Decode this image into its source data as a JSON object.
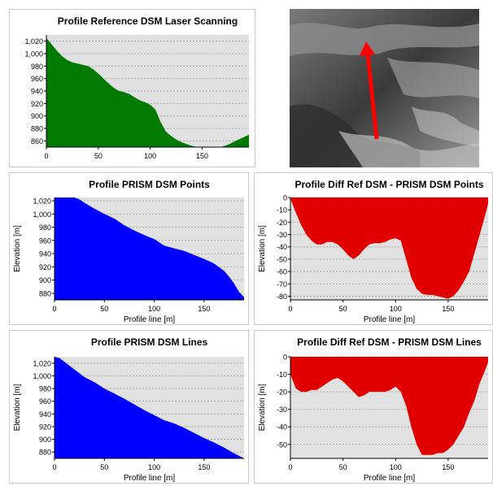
{
  "colors": {
    "green": "#007a00",
    "blue": "#0000ff",
    "red": "#e00000",
    "plot_bg": "#e1e1e1",
    "arrow": "#ff0000"
  },
  "photo": {
    "icon": "aerial-image-with-profile-arrow"
  },
  "chart_data": [
    {
      "id": "c1",
      "type": "area",
      "title": "Profile Reference DSM Laser Scanning",
      "xlabel": "",
      "ylabel": "",
      "xlim": [
        0,
        195
      ],
      "ylim": [
        850,
        1030
      ],
      "xticks": [
        0,
        50,
        100,
        150
      ],
      "yticks": [
        860,
        880,
        900,
        920,
        940,
        960,
        980,
        1000,
        1020
      ],
      "color": "green",
      "fill_from": "bottom",
      "series": [
        {
          "x": [
            0,
            5,
            10,
            15,
            20,
            25,
            30,
            35,
            40,
            45,
            50,
            55,
            60,
            65,
            70,
            75,
            80,
            85,
            90,
            95,
            100,
            105,
            110,
            115,
            120,
            125,
            130,
            135,
            140,
            145,
            150,
            155,
            160,
            165,
            170,
            175,
            180,
            185,
            190,
            195
          ],
          "y": [
            1025,
            1015,
            1005,
            996,
            990,
            986,
            984,
            982,
            980,
            975,
            968,
            960,
            952,
            945,
            940,
            938,
            935,
            930,
            925,
            922,
            918,
            910,
            890,
            875,
            868,
            862,
            858,
            855,
            852,
            850,
            850,
            850,
            850,
            850,
            851,
            854,
            858,
            862,
            866,
            870
          ]
        }
      ]
    },
    {
      "id": "c2",
      "type": "area",
      "title": "Profile PRISM DSM Points",
      "xlabel": "Profile line [m]",
      "ylabel": "Elevation [m]",
      "xlim": [
        0,
        190
      ],
      "ylim": [
        870,
        1025
      ],
      "xticks": [
        0,
        50,
        100,
        150
      ],
      "yticks": [
        880,
        900,
        920,
        940,
        960,
        980,
        1000,
        1020
      ],
      "color": "blue",
      "fill_from": "bottom",
      "series": [
        {
          "x": [
            0,
            10,
            20,
            25,
            30,
            40,
            50,
            60,
            70,
            80,
            90,
            100,
            110,
            120,
            130,
            140,
            150,
            160,
            170,
            175,
            180,
            185,
            190
          ],
          "y": [
            1025,
            1025,
            1025,
            1022,
            1017,
            1008,
            1000,
            993,
            983,
            975,
            968,
            962,
            952,
            948,
            944,
            938,
            932,
            925,
            914,
            905,
            895,
            882,
            874
          ]
        }
      ]
    },
    {
      "id": "c3",
      "type": "area",
      "title": "Profile Diff Ref DSM - PRISM DSM Points",
      "xlabel": "Profile line [m]",
      "ylabel": "Elevation [m]",
      "xlim": [
        0,
        188
      ],
      "ylim": [
        -83,
        0
      ],
      "xticks": [
        0,
        50,
        100,
        150
      ],
      "yticks": [
        0,
        -10,
        -20,
        -30,
        -40,
        -50,
        -60,
        -70,
        -80
      ],
      "color": "red",
      "fill_from": "top",
      "series": [
        {
          "x": [
            0,
            5,
            10,
            15,
            20,
            25,
            30,
            35,
            40,
            45,
            50,
            55,
            60,
            65,
            70,
            75,
            80,
            85,
            90,
            95,
            100,
            105,
            110,
            115,
            120,
            125,
            130,
            135,
            140,
            145,
            150,
            155,
            160,
            165,
            170,
            175,
            180,
            185,
            188
          ],
          "y": [
            -1,
            -12,
            -22,
            -30,
            -35,
            -38,
            -38,
            -36,
            -36,
            -38,
            -42,
            -47,
            -50,
            -47,
            -42,
            -38,
            -37,
            -37,
            -36,
            -34,
            -33,
            -35,
            -50,
            -65,
            -74,
            -78,
            -79,
            -79,
            -80,
            -81,
            -82,
            -80,
            -75,
            -68,
            -60,
            -45,
            -30,
            -15,
            -5
          ]
        }
      ]
    },
    {
      "id": "c4",
      "type": "area",
      "title": "Profile PRISM DSM Lines",
      "xlabel": "Profile line [m]",
      "ylabel": "Elevation [m]",
      "xlim": [
        0,
        190
      ],
      "ylim": [
        870,
        1030
      ],
      "xticks": [
        0,
        50,
        100,
        150
      ],
      "yticks": [
        880,
        900,
        920,
        940,
        960,
        980,
        1000,
        1020
      ],
      "color": "blue",
      "fill_from": "bottom",
      "series": [
        {
          "x": [
            0,
            5,
            10,
            20,
            30,
            40,
            50,
            60,
            70,
            80,
            90,
            100,
            110,
            120,
            130,
            140,
            150,
            160,
            170,
            180,
            190
          ],
          "y": [
            1030,
            1028,
            1022,
            1010,
            998,
            990,
            980,
            972,
            964,
            955,
            946,
            938,
            930,
            925,
            918,
            910,
            902,
            895,
            887,
            878,
            870
          ]
        }
      ]
    },
    {
      "id": "c5",
      "type": "area",
      "title": "Profile Diff Ref DSM - PRISM DSM Lines",
      "xlabel": "Profile line [m]",
      "ylabel": "Elevation [m]",
      "xlim": [
        0,
        188
      ],
      "ylim": [
        -58,
        0
      ],
      "xticks": [
        0,
        50,
        100,
        150
      ],
      "yticks": [
        0,
        -10,
        -20,
        -30,
        -40,
        -50
      ],
      "color": "red",
      "fill_from": "top",
      "series": [
        {
          "x": [
            0,
            5,
            10,
            15,
            20,
            25,
            30,
            35,
            40,
            45,
            50,
            55,
            60,
            65,
            70,
            75,
            80,
            85,
            90,
            95,
            100,
            105,
            110,
            115,
            120,
            125,
            130,
            135,
            140,
            145,
            150,
            155,
            160,
            165,
            170,
            175,
            180,
            185,
            188
          ],
          "y": [
            -10,
            -18,
            -20,
            -20,
            -19,
            -19,
            -17,
            -15,
            -13,
            -12,
            -14,
            -17,
            -20,
            -23,
            -22,
            -20,
            -20,
            -20,
            -20,
            -19,
            -17,
            -20,
            -28,
            -40,
            -50,
            -56,
            -56,
            -56,
            -55,
            -55,
            -53,
            -50,
            -45,
            -40,
            -32,
            -25,
            -15,
            -8,
            -3
          ]
        }
      ]
    }
  ]
}
